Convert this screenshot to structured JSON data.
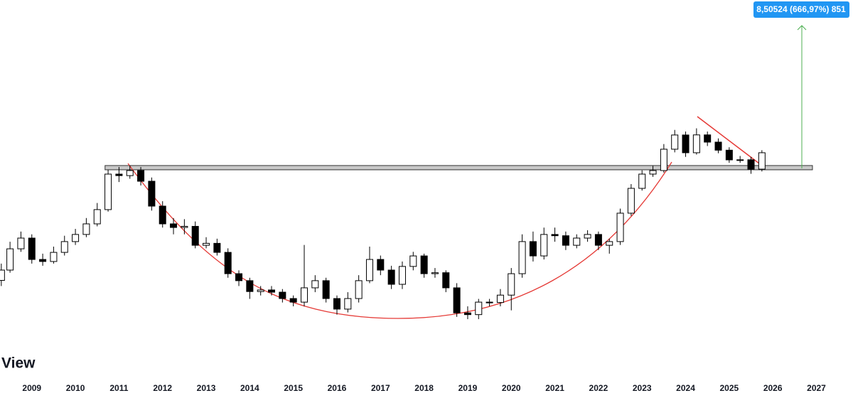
{
  "chart_data": {
    "type": "candlestick",
    "log_scale": true,
    "watermark": "View",
    "measure_label": "8,50524 (666,97%) 851",
    "xlim": [
      2008.27,
      2027.84
    ],
    "xticks": [
      2009,
      2010,
      2011,
      2012,
      2013,
      2014,
      2015,
      2016,
      2017,
      2018,
      2019,
      2020,
      2021,
      2022,
      2023,
      2024,
      2025,
      2026,
      2027
    ],
    "ylim": [
      0.0663,
      13.9
    ],
    "up_color": "#ffffff",
    "down_color": "#000000",
    "zone": {
      "from": 1.249,
      "to": 1.327,
      "x": [
        2010.68,
        2026.91
      ],
      "color": "#c8c8c8"
    },
    "x": [
      2008.3,
      2008.5,
      2008.75,
      2009,
      2009.25,
      2009.5,
      2009.75,
      2010,
      2010.25,
      2010.5,
      2010.75,
      2011,
      2011.25,
      2011.5,
      2011.75,
      2012,
      2012.25,
      2012.5,
      2012.75,
      2013,
      2013.25,
      2013.5,
      2013.75,
      2014,
      2014.25,
      2014.5,
      2014.75,
      2015,
      2015.25,
      2015.5,
      2015.75,
      2016,
      2016.25,
      2016.5,
      2016.75,
      2017,
      2017.25,
      2017.5,
      2017.75,
      2018,
      2018.25,
      2018.5,
      2018.75,
      2019,
      2019.25,
      2019.5,
      2019.75,
      2020,
      2020.25,
      2020.5,
      2020.75,
      2021,
      2021.25,
      2021.5,
      2021.75,
      2022,
      2022.25,
      2022.5,
      2022.75,
      2023,
      2023.25,
      2023.5,
      2023.75,
      2024,
      2024.25,
      2024.5,
      2024.75,
      2025,
      2025.25,
      2025.5,
      2025.75
    ],
    "open": [
      0.26,
      0.301,
      0.407,
      0.474,
      0.35,
      0.34,
      0.387,
      0.451,
      0.499,
      0.58,
      0.71,
      1.175,
      1.15,
      1.236,
      1.062,
      0.746,
      0.58,
      0.551,
      0.56,
      0.428,
      0.44,
      0.387,
      0.286,
      0.259,
      0.222,
      0.227,
      0.22,
      0.201,
      0.191,
      0.234,
      0.259,
      0.201,
      0.173,
      0.201,
      0.259,
      0.35,
      0.301,
      0.246,
      0.317,
      0.368,
      0.286,
      0.29,
      0.234,
      0.164,
      0.16,
      0.191,
      0.19,
      0.211,
      0.286,
      0.451,
      0.368,
      0.499,
      0.49,
      0.428,
      0.474,
      0.499,
      0.428,
      0.451,
      0.675,
      0.96,
      1.175,
      1.236,
      1.673,
      2.047,
      1.591,
      2.05,
      1.85,
      1.65,
      1.438,
      1.44,
      1.261
    ],
    "high": [
      0.33,
      0.45,
      0.52,
      0.5,
      0.38,
      0.42,
      0.49,
      0.54,
      0.63,
      0.78,
      1.25,
      1.3,
      1.33,
      1.3,
      1.12,
      0.8,
      0.63,
      0.62,
      0.6,
      0.48,
      0.47,
      0.41,
      0.3,
      0.27,
      0.24,
      0.24,
      0.23,
      0.21,
      0.43,
      0.28,
      0.27,
      0.21,
      0.22,
      0.28,
      0.42,
      0.37,
      0.32,
      0.34,
      0.39,
      0.38,
      0.31,
      0.3,
      0.25,
      0.18,
      0.2,
      0.2,
      0.23,
      0.31,
      0.5,
      0.52,
      0.55,
      0.55,
      0.52,
      0.5,
      0.53,
      0.52,
      0.47,
      0.72,
      1.02,
      1.24,
      1.32,
      1.8,
      2.2,
      2.15,
      2.25,
      2.15,
      1.95,
      1.72,
      1.52,
      1.5,
      1.65
    ],
    "low": [
      0.24,
      0.29,
      0.39,
      0.33,
      0.32,
      0.33,
      0.37,
      0.43,
      0.48,
      0.56,
      0.69,
      1.05,
      1.1,
      1.0,
      0.7,
      0.55,
      0.5,
      0.5,
      0.41,
      0.41,
      0.37,
      0.27,
      0.24,
      0.2,
      0.21,
      0.21,
      0.19,
      0.18,
      0.18,
      0.22,
      0.19,
      0.16,
      0.165,
      0.19,
      0.25,
      0.28,
      0.23,
      0.23,
      0.3,
      0.27,
      0.27,
      0.22,
      0.155,
      0.15,
      0.15,
      0.18,
      0.18,
      0.17,
      0.27,
      0.34,
      0.35,
      0.45,
      0.4,
      0.41,
      0.45,
      0.4,
      0.38,
      0.43,
      0.65,
      0.93,
      1.13,
      1.2,
      1.6,
      1.5,
      1.55,
      1.75,
      1.58,
      1.38,
      1.38,
      1.18,
      1.22
    ],
    "close": [
      0.301,
      0.407,
      0.474,
      0.35,
      0.34,
      0.387,
      0.451,
      0.499,
      0.58,
      0.71,
      1.175,
      1.15,
      1.236,
      1.062,
      0.746,
      0.58,
      0.551,
      0.56,
      0.428,
      0.44,
      0.387,
      0.286,
      0.259,
      0.222,
      0.227,
      0.22,
      0.201,
      0.191,
      0.234,
      0.259,
      0.201,
      0.173,
      0.201,
      0.259,
      0.35,
      0.301,
      0.246,
      0.317,
      0.368,
      0.286,
      0.29,
      0.234,
      0.164,
      0.16,
      0.191,
      0.19,
      0.211,
      0.286,
      0.451,
      0.368,
      0.499,
      0.49,
      0.428,
      0.474,
      0.499,
      0.428,
      0.451,
      0.675,
      0.96,
      1.175,
      1.236,
      1.673,
      2.047,
      1.591,
      2.05,
      1.85,
      1.65,
      1.438,
      1.44,
      1.261,
      1.591
    ]
  }
}
